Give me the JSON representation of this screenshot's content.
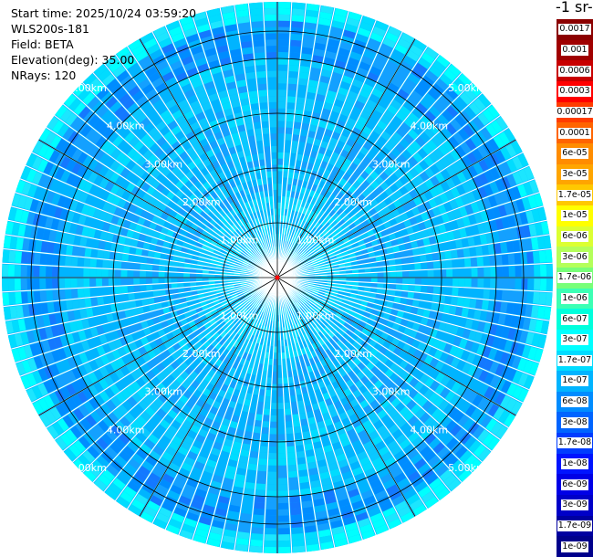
{
  "info": {
    "start_time": "Start time: 2025/10/24 03:59:20",
    "instrument": "WLS200s-181",
    "field": "Field: BETA",
    "elevation": "Elevation(deg): 35.00",
    "nrays": "NRays: 120"
  },
  "colorbar": {
    "title": "-1 sr-",
    "labels": [
      "0.0017",
      "0.001",
      "0.0006",
      "0.0003",
      "0.00017",
      "0.0001",
      "6e-05",
      "3e-05",
      "1.7e-05",
      "1e-05",
      "6e-06",
      "3e-06",
      "1.7e-06",
      "1e-06",
      "6e-07",
      "3e-07",
      "1.7e-07",
      "1e-07",
      "6e-08",
      "3e-08",
      "1.7e-08",
      "1e-08",
      "6e-09",
      "3e-09",
      "1.7e-09",
      "1e-09"
    ],
    "colors": [
      "#8b0000",
      "#a00000",
      "#c80000",
      "#ff0000",
      "#ff3c00",
      "#ff6400",
      "#ff8c00",
      "#ffa500",
      "#ffc800",
      "#ffff00",
      "#dcff32",
      "#b4ff5a",
      "#78ff78",
      "#3cffb4",
      "#00ffdc",
      "#00ffff",
      "#00dcff",
      "#00b4ff",
      "#008cff",
      "#0064ff",
      "#003cff",
      "#0014ff",
      "#0000e6",
      "#0000c8",
      "#0000a0",
      "#00008b"
    ]
  },
  "ppi": {
    "range_ring_labels": [
      "1.00km",
      "2.00km",
      "3.00km",
      "4.00km",
      "5.00km"
    ],
    "rays": 120
  }
}
